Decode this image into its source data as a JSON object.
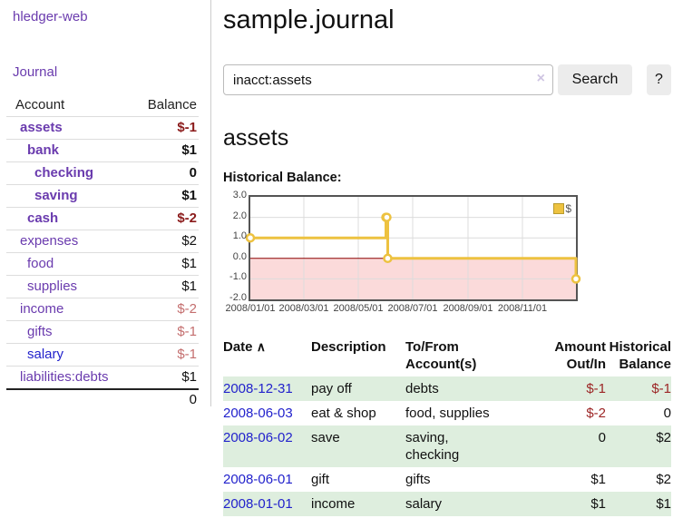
{
  "sidebar": {
    "app_title": "hledger-web",
    "journal_label": "Journal",
    "table": {
      "account_header": "Account",
      "balance_header": "Balance"
    },
    "accounts": [
      {
        "name": "assets",
        "balance": "$-1"
      },
      {
        "name": "bank",
        "balance": "$1"
      },
      {
        "name": "checking",
        "balance": "0"
      },
      {
        "name": "saving",
        "balance": "$1"
      },
      {
        "name": "cash",
        "balance": "$-2"
      },
      {
        "name": "expenses",
        "balance": "$2"
      },
      {
        "name": "food",
        "balance": "$1"
      },
      {
        "name": "supplies",
        "balance": "$1"
      },
      {
        "name": "income",
        "balance": "$-2"
      },
      {
        "name": "gifts",
        "balance": "$-1"
      },
      {
        "name": "salary",
        "balance": "$-1"
      },
      {
        "name": "liabilities:debts",
        "balance": "$1"
      }
    ],
    "total": "0"
  },
  "main": {
    "title": "sample.journal",
    "account_heading": "assets",
    "chart_label": "Historical Balance:"
  },
  "search": {
    "query": "inacct:assets",
    "clear_icon": "×",
    "button_label": "Search",
    "help_label": "?"
  },
  "chart_data": {
    "type": "line",
    "title": "Historical Balance",
    "step": true,
    "series": [
      {
        "name": "$",
        "color": "#edc240",
        "points": [
          [
            "2008-01-01",
            1
          ],
          [
            "2008-06-01",
            2
          ],
          [
            "2008-06-02",
            2
          ],
          [
            "2008-06-03",
            0
          ],
          [
            "2008-12-31",
            -1
          ]
        ]
      }
    ],
    "xlim": [
      "2008-01-01",
      "2008-12-31"
    ],
    "ylim": [
      -2,
      3
    ],
    "yticks": [
      {
        "v": 3,
        "label": "3.0"
      },
      {
        "v": 2,
        "label": "2.0"
      },
      {
        "v": 1,
        "label": "1.0"
      },
      {
        "v": 0,
        "label": "0.0"
      },
      {
        "v": -1,
        "label": "-1.0"
      },
      {
        "v": -2,
        "label": "-2.0"
      }
    ],
    "xticks": [
      {
        "date": "2008-01-01",
        "label": "2008/01/01"
      },
      {
        "date": "2008-03-01",
        "label": "2008/03/01"
      },
      {
        "date": "2008-05-01",
        "label": "2008/05/01"
      },
      {
        "date": "2008-07-01",
        "label": "2008/07/01"
      },
      {
        "date": "2008-09-01",
        "label": "2008/09/01"
      },
      {
        "date": "2008-11-01",
        "label": "2008/11/01"
      }
    ],
    "legend": {
      "label": "$",
      "position": "top-right"
    },
    "grid": true,
    "zero_line_color": "#8b0000",
    "negative_region_color": "#fbdada",
    "grid_color": "#dcdcdc"
  },
  "transactions": {
    "headers": {
      "date": "Date",
      "sort_icon": "∧",
      "description": "Description",
      "accounts": "To/From Account(s)",
      "amount": "Amount Out/In",
      "balance": "Historical Balance"
    },
    "rows": [
      {
        "date": "2008-12-31",
        "description": "pay off",
        "accounts": "debts",
        "amount": "$-1",
        "balance": "$-1"
      },
      {
        "date": "2008-06-03",
        "description": "eat & shop",
        "accounts": "food, supplies",
        "amount": "$-2",
        "balance": "0"
      },
      {
        "date": "2008-06-02",
        "description": "save",
        "accounts": "saving, checking",
        "amount": "0",
        "balance": "$2"
      },
      {
        "date": "2008-06-01",
        "description": "gift",
        "accounts": "gifts",
        "amount": "$1",
        "balance": "$2"
      },
      {
        "date": "2008-01-01",
        "description": "income",
        "accounts": "salary",
        "amount": "$1",
        "balance": "$1"
      }
    ]
  }
}
